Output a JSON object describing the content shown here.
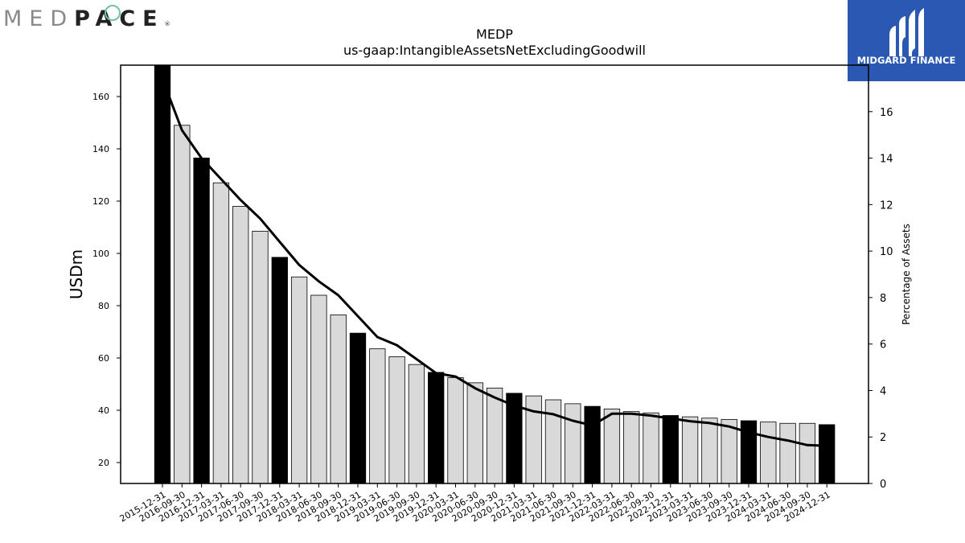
{
  "logos": {
    "left": {
      "light": "MED",
      "dark": "PACE",
      "reg": "®"
    },
    "right": {
      "brand": "MIDGARD FINANCE"
    }
  },
  "chart_data": {
    "type": "bar",
    "title": "MEDP",
    "subtitle": "us-gaap:IntangibleAssetsNetExcludingGoodwill",
    "ylabel": "USDm",
    "y2label": "Percentage of Assets",
    "ylim": [
      12,
      172
    ],
    "y2lim": [
      0,
      18
    ],
    "yticks": [
      20,
      40,
      60,
      80,
      100,
      120,
      140,
      160
    ],
    "y2ticks": [
      0,
      2,
      4,
      6,
      8,
      10,
      12,
      14,
      16
    ],
    "categories": [
      "2015-12-31",
      "2016-09-30",
      "2016-12-31",
      "2017-03-31",
      "2017-06-30",
      "2017-09-30",
      "2017-12-31",
      "2018-03-31",
      "2018-06-30",
      "2018-09-30",
      "2018-12-31",
      "2019-03-31",
      "2019-06-30",
      "2019-09-30",
      "2019-12-31",
      "2020-03-31",
      "2020-06-30",
      "2020-09-30",
      "2020-12-31",
      "2021-03-31",
      "2021-06-30",
      "2021-09-30",
      "2021-12-31",
      "2022-03-31",
      "2022-06-30",
      "2022-09-30",
      "2022-12-31",
      "2023-03-31",
      "2023-06-30",
      "2023-09-30",
      "2023-12-31",
      "2024-03-31",
      "2024-06-30",
      "2024-09-30",
      "2024-12-31"
    ],
    "series": [
      {
        "type": "bar",
        "axis": "left",
        "values": [
          172,
          149,
          136.5,
          127,
          118,
          108.5,
          98.5,
          91,
          84,
          76.5,
          69.5,
          63.5,
          60.5,
          57.5,
          54.5,
          52.5,
          50.5,
          48.5,
          46.5,
          45.5,
          44,
          42.5,
          41.5,
          40.5,
          39.5,
          39,
          38,
          37.5,
          37,
          36.5,
          36,
          35.5,
          35,
          35,
          34.5
        ],
        "highlight": [
          true,
          false,
          true,
          false,
          false,
          false,
          true,
          false,
          false,
          false,
          true,
          false,
          false,
          false,
          true,
          false,
          false,
          false,
          true,
          false,
          false,
          false,
          true,
          false,
          false,
          false,
          true,
          false,
          false,
          false,
          true,
          false,
          false,
          false,
          true
        ]
      },
      {
        "type": "line",
        "axis": "right",
        "values": [
          17.4,
          15.2,
          14.0,
          13.1,
          12.2,
          11.4,
          10.4,
          9.4,
          8.7,
          8.1,
          7.2,
          6.3,
          5.95,
          5.35,
          4.75,
          4.6,
          4.1,
          3.7,
          3.35,
          3.1,
          2.98,
          2.7,
          2.5,
          3.0,
          3.0,
          2.92,
          2.8,
          2.68,
          2.6,
          2.45,
          2.2,
          2.0,
          1.85,
          1.65,
          1.62
        ]
      }
    ],
    "colors": {
      "highlight_bar": "#000000",
      "bar_fill": "#d9d9d9",
      "bar_edge": "#000000",
      "line": "#000000"
    },
    "grid": false,
    "legend": "none"
  }
}
